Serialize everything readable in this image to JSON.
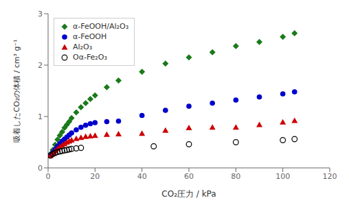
{
  "chart_data": {
    "type": "scatter",
    "xlabel": "CO₂圧力 / kPa",
    "ylabel": "吸着したCO₂の体積 / cm³ g⁻¹",
    "xlim": [
      0,
      120
    ],
    "ylim": [
      0,
      3
    ],
    "xticks": [
      0,
      20,
      40,
      60,
      80,
      100,
      120
    ],
    "yticks": [
      0,
      1,
      2,
      3
    ],
    "grid": false,
    "legend": "upper left",
    "series": [
      {
        "name": "α-FeOOH/Al₂O₃",
        "color": "#1a7a1a",
        "marker": "diamond",
        "x": [
          1,
          2,
          3,
          4,
          5,
          6,
          7,
          8,
          9,
          10,
          12,
          14,
          16,
          18,
          20,
          25,
          30,
          40,
          50,
          60,
          70,
          80,
          90,
          100,
          105
        ],
        "values": [
          0.27,
          0.35,
          0.45,
          0.55,
          0.63,
          0.7,
          0.78,
          0.84,
          0.9,
          0.97,
          1.08,
          1.18,
          1.26,
          1.34,
          1.41,
          1.57,
          1.7,
          1.87,
          2.03,
          2.15,
          2.25,
          2.37,
          2.45,
          2.55,
          2.62
        ]
      },
      {
        "name": "α-FeOOH",
        "color": "#0000cc",
        "marker": "circle",
        "x": [
          1,
          2,
          3,
          4,
          5,
          6,
          7,
          8,
          9,
          10,
          12,
          14,
          16,
          18,
          20,
          25,
          30,
          40,
          50,
          60,
          70,
          80,
          90,
          100,
          105
        ],
        "values": [
          0.25,
          0.3,
          0.36,
          0.42,
          0.47,
          0.52,
          0.56,
          0.6,
          0.64,
          0.68,
          0.74,
          0.79,
          0.83,
          0.86,
          0.88,
          0.9,
          0.91,
          1.02,
          1.12,
          1.2,
          1.26,
          1.32,
          1.38,
          1.44,
          1.48
        ]
      },
      {
        "name": "Al₂O₃",
        "color": "#cc0000",
        "marker": "triangle",
        "x": [
          1,
          2,
          3,
          4,
          5,
          6,
          7,
          8,
          9,
          10,
          12,
          14,
          16,
          18,
          20,
          25,
          30,
          40,
          50,
          60,
          70,
          80,
          90,
          100,
          105
        ],
        "values": [
          0.24,
          0.28,
          0.33,
          0.37,
          0.41,
          0.44,
          0.47,
          0.5,
          0.52,
          0.54,
          0.57,
          0.59,
          0.61,
          0.62,
          0.63,
          0.65,
          0.66,
          0.67,
          0.73,
          0.78,
          0.79,
          0.79,
          0.84,
          0.89,
          0.92
        ]
      },
      {
        "name": "Oα-Fe₂O₃",
        "color": "#000000",
        "marker": "open_circle",
        "x": [
          1,
          2,
          3,
          4,
          5,
          6,
          7,
          8,
          9,
          10,
          12,
          14,
          45,
          60,
          80,
          100,
          105
        ],
        "values": [
          0.24,
          0.27,
          0.29,
          0.31,
          0.32,
          0.33,
          0.34,
          0.35,
          0.36,
          0.37,
          0.38,
          0.39,
          0.42,
          0.46,
          0.5,
          0.54,
          0.56
        ]
      }
    ]
  }
}
